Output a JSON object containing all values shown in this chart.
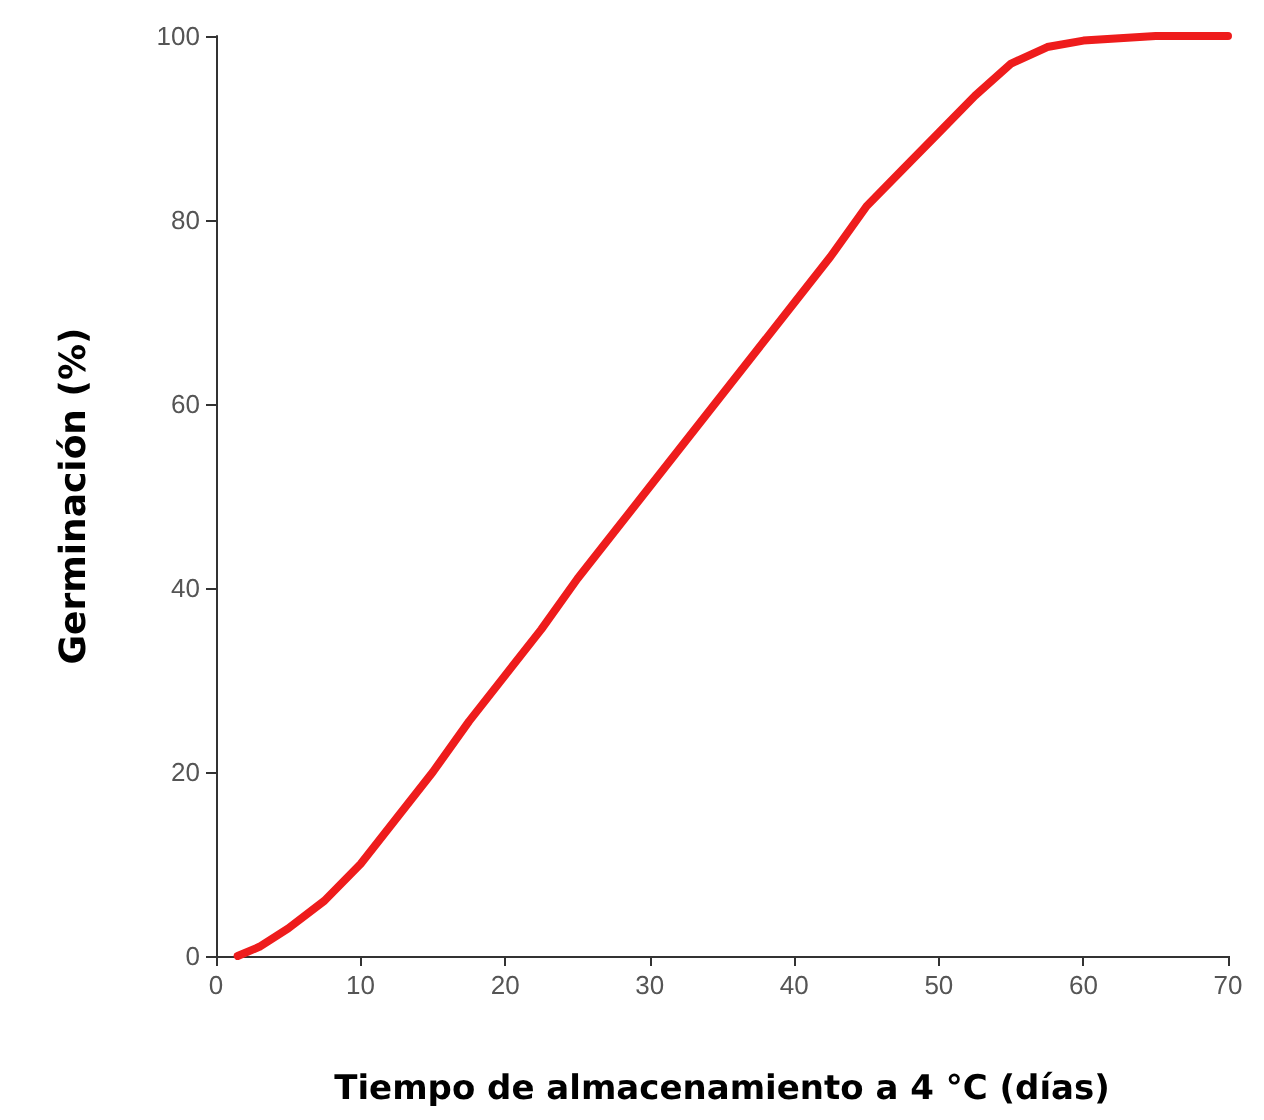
{
  "chart_data": {
    "type": "line",
    "xlabel": "Tiempo de almacenamiento a 4 °C (días)",
    "ylabel": "Germinación (%)",
    "x": [
      1.5,
      3,
      5,
      7.5,
      10,
      12.5,
      15,
      17.5,
      20,
      22.5,
      25,
      27.5,
      30,
      32.5,
      35,
      37.5,
      40,
      42.5,
      45,
      47.5,
      50,
      52.5,
      55,
      57.5,
      60,
      65,
      70
    ],
    "series": [
      {
        "color": "#ee1c1c",
        "values": [
          0,
          1,
          3,
          6,
          10,
          15,
          20,
          25.5,
          30.5,
          35.5,
          41,
          46,
          51,
          56,
          61,
          66,
          71,
          76,
          81.5,
          85.5,
          89.5,
          93.5,
          97,
          98.8,
          99.5,
          100,
          100
        ]
      }
    ],
    "xlim": [
      0,
      70
    ],
    "xticks": [
      0,
      10,
      20,
      30,
      40,
      50,
      60,
      70
    ],
    "ylim": [
      0,
      100
    ],
    "yticks": [
      0,
      20,
      40,
      60,
      80,
      100
    ],
    "grid": false,
    "marker": "none",
    "line_style": "solid"
  }
}
